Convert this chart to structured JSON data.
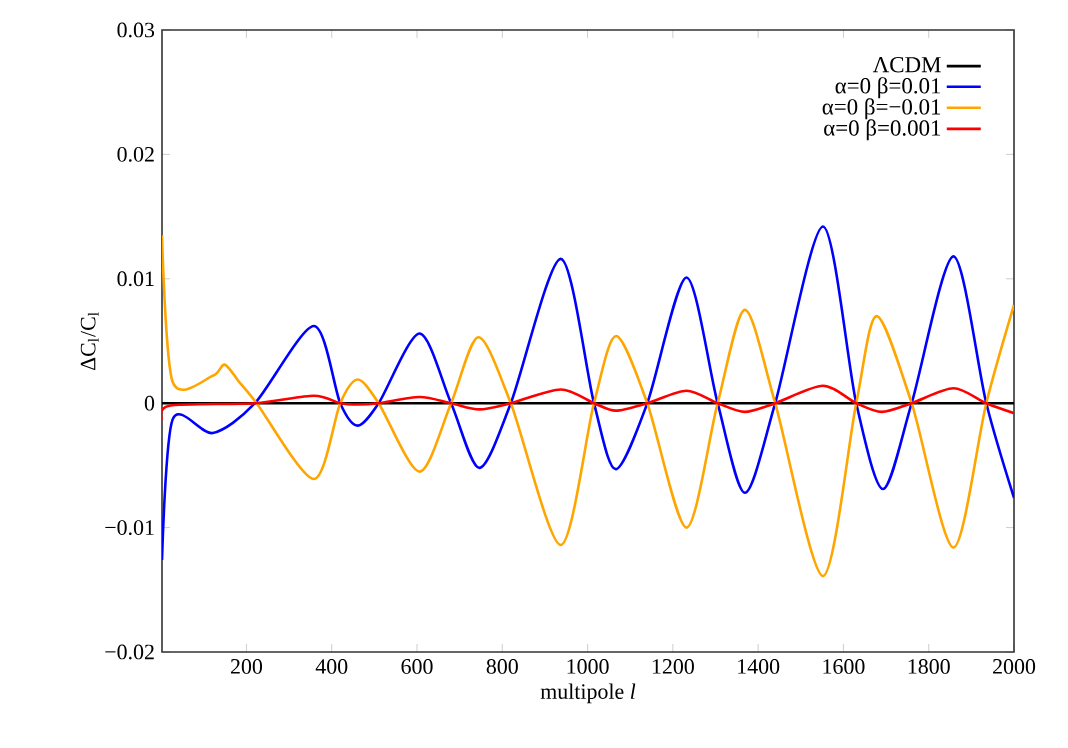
{
  "chart_data": {
    "type": "line",
    "xlabel": "multipole *l*",
    "ylabel": "ΔC$_{l}$/C$_{l}$",
    "xlim": [
      2,
      2000
    ],
    "ylim": [
      -0.02,
      0.03
    ],
    "xticks": [
      200,
      400,
      600,
      800,
      1000,
      1200,
      1400,
      1600,
      1800,
      2000
    ],
    "yticks": [
      {
        "value": -0.02,
        "label": "−0.02"
      },
      {
        "value": -0.01,
        "label": "−0.01"
      },
      0,
      0.01,
      0.02,
      0.03
    ],
    "legend": "top right",
    "series": [
      {
        "name": "ΛCDM",
        "color": "#000000",
        "x": [
          2,
          2000
        ],
        "values": [
          0,
          0
        ]
      },
      {
        "name": "α=0 β=0.01",
        "color": "#0000ff",
        "x": [
          2,
          27,
          121,
          220,
          358,
          420,
          461,
          510,
          606,
          680,
          746,
          820,
          937,
          1015,
          1066,
          1140,
          1232,
          1305,
          1369,
          1440,
          1552,
          1630,
          1693,
          1760,
          1858,
          1935,
          2000
        ],
        "values": [
          -0.0126,
          -0.0013,
          -0.0024,
          0,
          0.0062,
          0,
          -0.0018,
          0,
          0.0056,
          0,
          -0.0052,
          0,
          0.0116,
          0,
          -0.0053,
          0,
          0.0101,
          0,
          -0.0072,
          0,
          0.0142,
          0,
          -0.0069,
          0,
          0.0118,
          0,
          -0.0076
        ]
      },
      {
        "name": "α=0 β=−0.01",
        "color": "#ffa500",
        "x": [
          2,
          27,
          121,
          149,
          183,
          224,
          358,
          420,
          461,
          510,
          606,
          680,
          744,
          820,
          937,
          1015,
          1067,
          1140,
          1232,
          1305,
          1369,
          1440,
          1552,
          1630,
          1678,
          1760,
          1858,
          1935,
          2000
        ],
        "values": [
          0.0135,
          0.0017,
          0.0022,
          0.0031,
          0.0017,
          0,
          -0.0061,
          0,
          0.0019,
          0,
          -0.0055,
          0,
          0.0053,
          0,
          -0.0114,
          0,
          0.0054,
          0,
          -0.01,
          0,
          0.0075,
          0,
          -0.0139,
          0,
          0.007,
          0,
          -0.0116,
          0,
          0.0079
        ]
      },
      {
        "name": "α=0 β=0.001",
        "color": "#ff0000",
        "x": [
          2,
          20,
          220,
          358,
          420,
          461,
          510,
          606,
          680,
          746,
          820,
          937,
          1015,
          1066,
          1140,
          1232,
          1305,
          1369,
          1440,
          1552,
          1630,
          1690,
          1760,
          1858,
          1935,
          2000
        ],
        "values": [
          -0.0013,
          -0.0002,
          0,
          0.0006,
          0,
          -0.0001,
          0,
          0.0005,
          0,
          -0.0005,
          0,
          0.0011,
          0,
          -0.0006,
          0,
          0.001,
          0,
          -0.0007,
          0,
          0.0014,
          0,
          -0.0007,
          0,
          0.0012,
          0,
          -0.0008
        ]
      }
    ]
  }
}
